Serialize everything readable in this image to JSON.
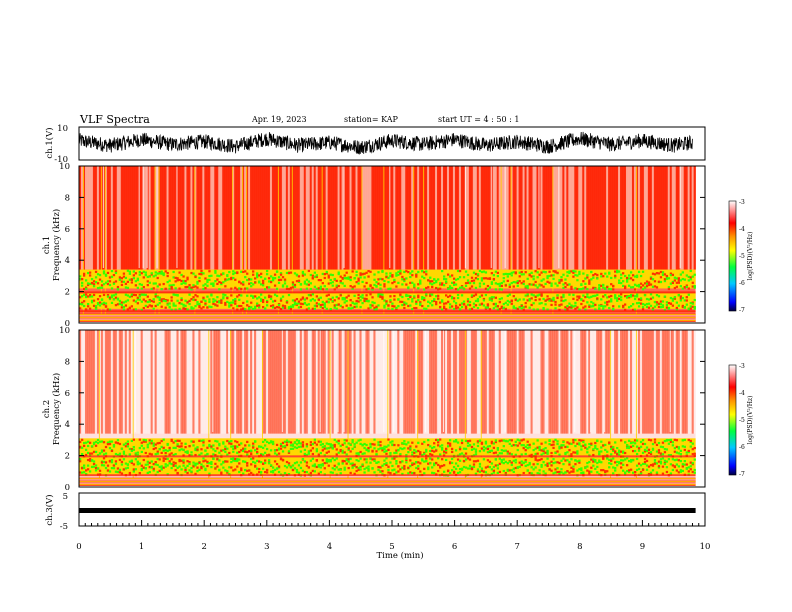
{
  "header": {
    "title": "VLF Spectra",
    "date": "Apr. 19, 2023",
    "station": "station= KAP",
    "start": "start UT =  4 : 50 : 1"
  },
  "colors": {
    "frame": "#000000",
    "red": "#ff2a00",
    "yellow": "#ffd000",
    "green": "#33ff00",
    "background": "#ffffff"
  },
  "chart_data": [
    {
      "type": "line",
      "name": "ch1-waveform",
      "ylabel": "ch.1(V)",
      "ylim": [
        -10,
        10
      ],
      "yticks": [
        "10",
        "-10"
      ],
      "xlim": [
        0,
        10
      ],
      "x": [
        0,
        0.5,
        1,
        1.5,
        2,
        2.5,
        3,
        3.5,
        4,
        4.5,
        5,
        5.5,
        6,
        6.5,
        7,
        7.5,
        8,
        8.5,
        9,
        9.5,
        9.8
      ],
      "y": [
        3,
        -2,
        4,
        -1,
        2,
        -3,
        5,
        -2,
        1,
        -4,
        3,
        -1,
        4,
        -2,
        2,
        -3,
        5,
        -1,
        3,
        -2,
        1
      ]
    },
    {
      "type": "heatmap",
      "name": "ch1-spectrogram",
      "ylabel": "ch.1 Frequency (kHz)",
      "ylim": [
        0,
        10
      ],
      "yticks": [
        "0",
        "2",
        "4",
        "6",
        "8",
        "10"
      ],
      "xlim": [
        0,
        9.85
      ],
      "colorbar": {
        "label": "log(PSD)(V²/Hz)",
        "range": [
          -7,
          -3
        ],
        "ticks": [
          "-3",
          "-4",
          "-5",
          "-6",
          "-7"
        ]
      },
      "bands": [
        {
          "f_low": 0.0,
          "f_high": 0.6,
          "level": "orange-lines"
        },
        {
          "f_low": 0.9,
          "f_high": 1.9,
          "level": "green"
        },
        {
          "f_low": 2.2,
          "f_high": 3.4,
          "level": "green"
        },
        {
          "f_low": 3.4,
          "f_high": 10.0,
          "level": "red"
        }
      ]
    },
    {
      "type": "heatmap",
      "name": "ch2-spectrogram",
      "ylabel": "ch.2 Frequency (kHz)",
      "ylim": [
        0,
        10
      ],
      "yticks": [
        "0",
        "2",
        "4",
        "6",
        "8",
        "10"
      ],
      "xlim": [
        0,
        9.85
      ],
      "colorbar": {
        "label": "log(PSD)(V²/Hz)",
        "range": [
          -7,
          -3
        ],
        "ticks": [
          "-3",
          "-4",
          "-5",
          "-6",
          "-7"
        ]
      },
      "bands": [
        {
          "f_low": 0.0,
          "f_high": 0.6,
          "level": "orange-lines"
        },
        {
          "f_low": 0.8,
          "f_high": 1.9,
          "level": "green"
        },
        {
          "f_low": 2.0,
          "f_high": 3.1,
          "level": "green"
        },
        {
          "f_low": 3.1,
          "f_high": 10.0,
          "level": "sparse-red"
        }
      ]
    },
    {
      "type": "line",
      "name": "ch3-waveform",
      "ylabel": "ch.3(V)",
      "ylim": [
        -5,
        5
      ],
      "yticks": [
        "5",
        "-5"
      ],
      "xlim": [
        0,
        9.85
      ],
      "y_band": [
        -0.3,
        0.3
      ]
    }
  ],
  "xaxis": {
    "label": "Time (min)",
    "range": [
      0,
      10
    ],
    "ticks": [
      "0",
      "1",
      "2",
      "3",
      "4",
      "5",
      "6",
      "7",
      "8",
      "9",
      "10"
    ]
  }
}
